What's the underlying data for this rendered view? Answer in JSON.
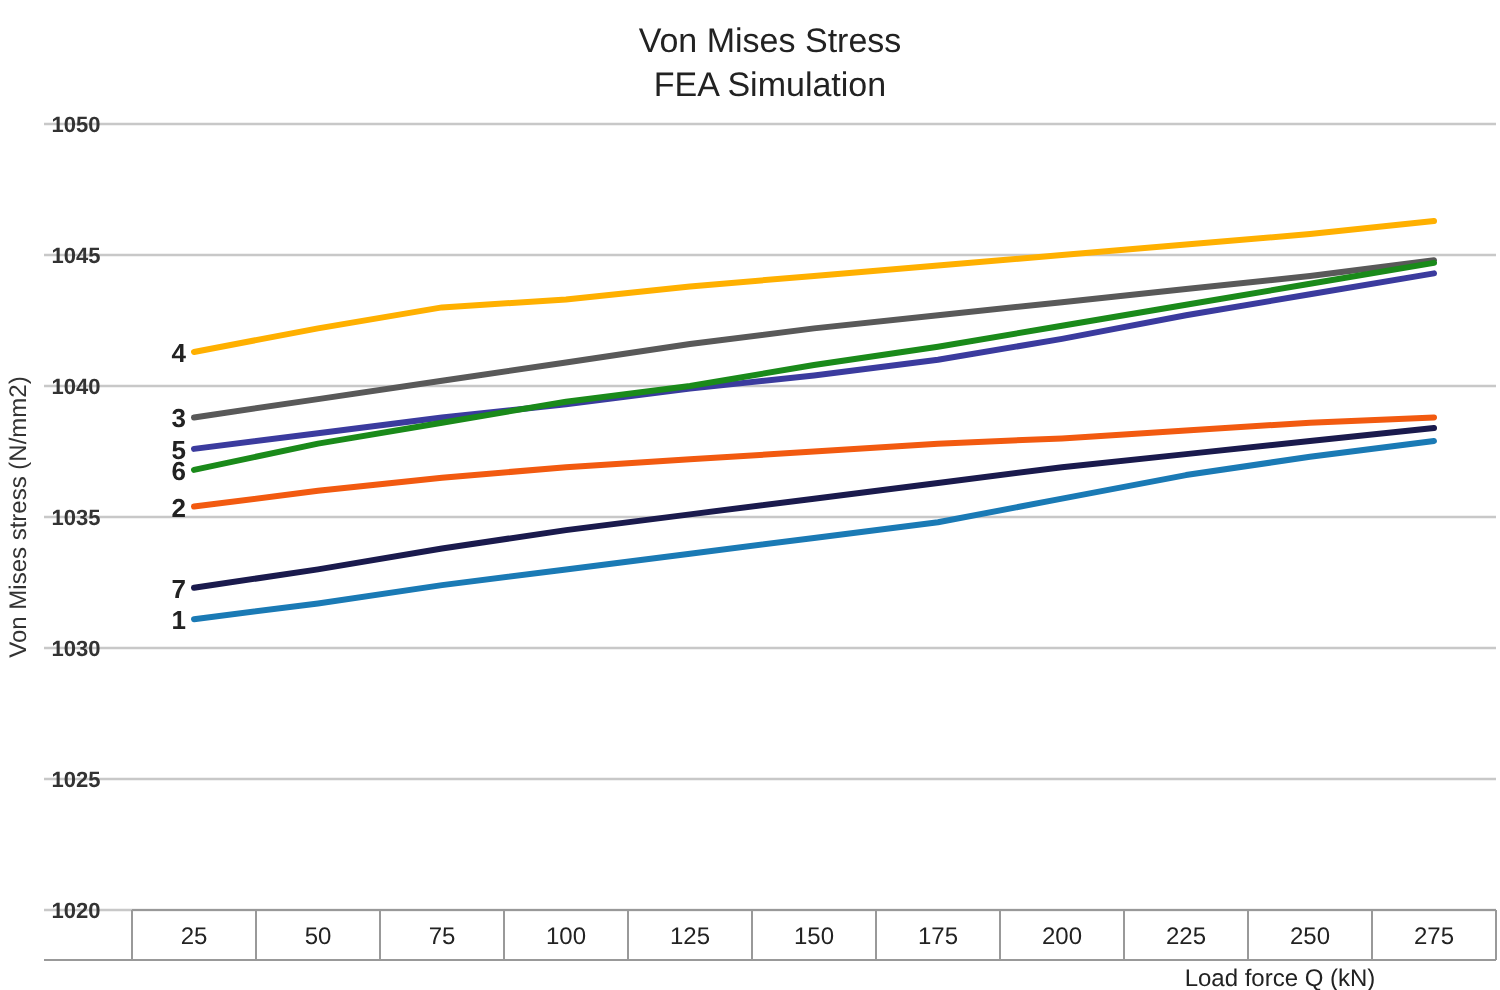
{
  "chart_data": {
    "type": "line",
    "title": "Von Mises Stress",
    "subtitle": "FEA Simulation",
    "xlabel": "Load force Q (kN)",
    "ylabel": "Von Mises stress (N/mm2)",
    "categories": [
      "25",
      "50",
      "75",
      "100",
      "125",
      "150",
      "175",
      "200",
      "225",
      "250",
      "275"
    ],
    "ylim": [
      1020,
      1050
    ],
    "yticks": [
      1020,
      1025,
      1030,
      1035,
      1040,
      1045,
      1050
    ],
    "grid": "y",
    "marker": "none",
    "line_style": "solid",
    "series": [
      {
        "name": "1",
        "color": "#1a7ab5",
        "values": [
          1031.1,
          1031.7,
          1032.4,
          1033.0,
          1033.6,
          1034.2,
          1034.8,
          1035.7,
          1036.6,
          1037.3,
          1037.9
        ]
      },
      {
        "name": "2",
        "color": "#f25a10",
        "values": [
          1035.4,
          1036.0,
          1036.5,
          1036.9,
          1037.2,
          1037.5,
          1037.8,
          1038.0,
          1038.3,
          1038.6,
          1038.8
        ]
      },
      {
        "name": "3",
        "color": "#595959",
        "values": [
          1038.8,
          1039.5,
          1040.2,
          1040.9,
          1041.6,
          1042.2,
          1042.7,
          1043.2,
          1043.7,
          1044.2,
          1044.8
        ]
      },
      {
        "name": "4",
        "color": "#ffb000",
        "values": [
          1041.3,
          1042.2,
          1043.0,
          1043.3,
          1043.8,
          1044.2,
          1044.6,
          1045.0,
          1045.4,
          1045.8,
          1046.3
        ]
      },
      {
        "name": "5",
        "color": "#3b3b9e",
        "values": [
          1037.6,
          1038.2,
          1038.8,
          1039.3,
          1039.9,
          1040.4,
          1041.0,
          1041.8,
          1042.7,
          1043.5,
          1044.3
        ]
      },
      {
        "name": "6",
        "color": "#1a8a1a",
        "values": [
          1036.8,
          1037.8,
          1038.6,
          1039.4,
          1040.0,
          1040.8,
          1041.5,
          1042.3,
          1043.1,
          1043.9,
          1044.7
        ]
      },
      {
        "name": "7",
        "color": "#1a1a4d",
        "values": [
          1032.3,
          1033.0,
          1033.8,
          1034.5,
          1035.1,
          1035.7,
          1036.3,
          1036.9,
          1037.4,
          1037.9,
          1038.4
        ]
      }
    ]
  }
}
